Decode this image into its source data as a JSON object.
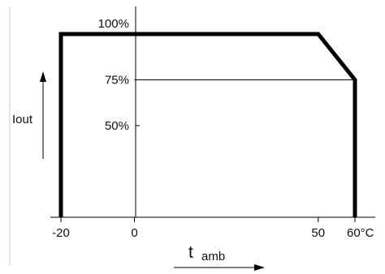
{
  "chart_data": {
    "type": "line",
    "title": "",
    "xlabel": "t",
    "xlabel_subscript": "amb",
    "ylabel": "Iout",
    "x_ticks": [
      {
        "value": -20,
        "label": "-20"
      },
      {
        "value": 0,
        "label": "0"
      },
      {
        "value": 50,
        "label": "50"
      },
      {
        "value": 60,
        "label": "60°C"
      }
    ],
    "y_ticks": [
      {
        "value": 100,
        "label": "100%"
      },
      {
        "value": 75,
        "label": "75%"
      },
      {
        "value": 50,
        "label": "50%"
      }
    ],
    "xlim": [
      -20,
      60
    ],
    "ylim": [
      0,
      100
    ],
    "grid": false,
    "series": [
      {
        "x": [
          -20,
          -20,
          50,
          60,
          60
        ],
        "y": [
          0,
          100,
          100,
          75,
          0
        ]
      }
    ],
    "reference_lines": [
      {
        "type": "horizontal",
        "y": 75,
        "x_from": 0,
        "x_to": 60
      }
    ],
    "colors": {
      "line": "#000000",
      "axes": "#000000",
      "background": "#ffffff"
    }
  }
}
